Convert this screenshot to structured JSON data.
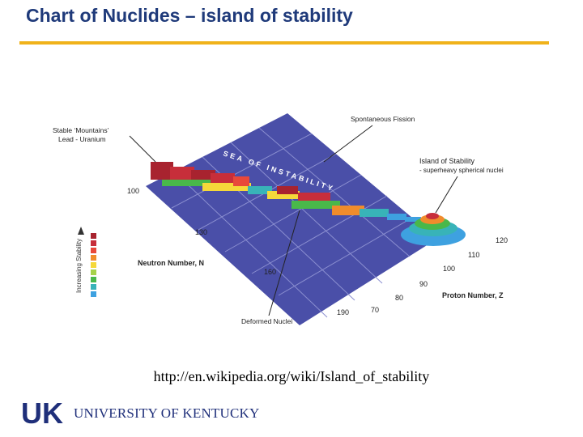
{
  "title": "Chart of Nuclides – island of stability",
  "colors": {
    "title": "#1f3a7a",
    "rule": "#f0b21a",
    "plane": "#4a4fa8",
    "grid": "#8b8fd0",
    "stability_scale": [
      "#a8232f",
      "#c72e3a",
      "#e8483a",
      "#f08c2c",
      "#f5d83a",
      "#a6d24a",
      "#49b84a",
      "#38b3b8",
      "#3ea1e0"
    ]
  },
  "figure": {
    "stable_mountains_label": "Stable ‘Mountains’",
    "stable_mountains_sub": "Lead - Uranium",
    "spontaneous_fission_label": "Spontaneous Fission",
    "island_label": "Island of Stability",
    "island_sub": "- superheavy spherical nuclei",
    "sea_label": "SEA OF INSTABILITY",
    "deformed_nuclei_label": "Deformed Nuclei",
    "stability_axis_label": "Increasing Stability",
    "neutron_axis_label": "Neutron Number, N",
    "proton_axis_label": "Proton Number, Z",
    "neutron_ticks": [
      "100",
      "130",
      "160",
      "190"
    ],
    "proton_ticks": [
      "70",
      "80",
      "90",
      "100",
      "110",
      "120"
    ]
  },
  "source_url": "http://en.wikipedia.org/wiki/Island_of_stability",
  "footer": {
    "logo_letters": "UK",
    "university_name": "UNIVERSITY OF KENTUCKY"
  }
}
